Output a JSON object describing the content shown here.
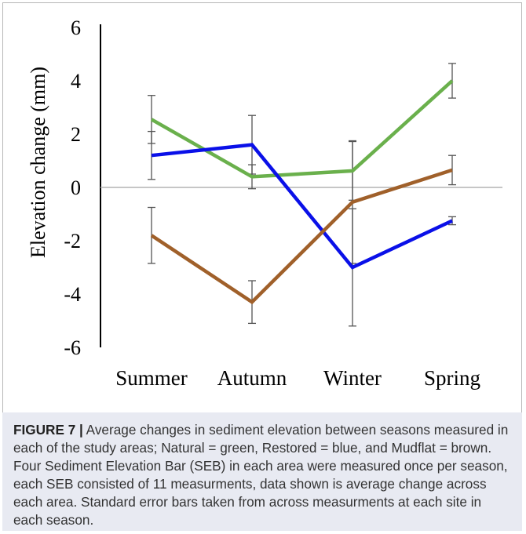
{
  "chart_data": {
    "type": "line",
    "categories": [
      "Summer",
      "Autumn",
      "Winter",
      "Spring"
    ],
    "ylabel": "Elevation change (mm)",
    "ylim": [
      -6,
      6
    ],
    "yticks": [
      6,
      4,
      2,
      0,
      -2,
      -4,
      -6
    ],
    "grid": false,
    "legend": "none",
    "series": [
      {
        "color": "#6ab04c",
        "values": [
          2.55,
          0.4,
          0.62,
          4.0
        ],
        "errors": [
          0.9,
          0.45,
          1.1,
          0.65
        ]
      },
      {
        "color": "#0a10e8",
        "values": [
          1.2,
          1.6,
          -3.0,
          -1.25
        ],
        "errors": [
          0.9,
          1.1,
          2.2,
          0.15
        ]
      },
      {
        "color": "#a0602a",
        "values": [
          -1.8,
          -4.3,
          -0.55,
          0.65
        ],
        "errors": [
          1.05,
          0.8,
          2.3,
          0.55
        ]
      }
    ]
  },
  "caption": {
    "label": "FIGURE 7 |",
    "text": " Average changes in sediment elevation between seasons measured in each of the study areas; Natural = green, Restored = blue, and Mudflat = brown. Four Sediment Elevation Bar (SEB) in each area were measured once per season, each SEB consisted of 11 measurments, data shown is average change across each area. Standard error bars taken from across measurments at each site in each season."
  }
}
